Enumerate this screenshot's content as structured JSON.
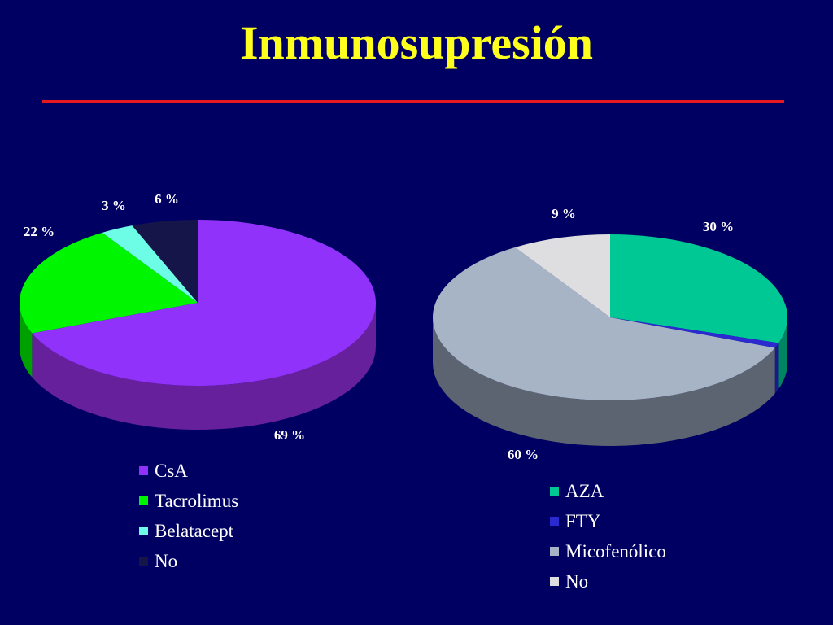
{
  "title": "Inmunosupresión",
  "chart_data": [
    {
      "type": "pie",
      "categories": [
        "CsA",
        "Tacrolimus",
        "Belatacept",
        "No"
      ],
      "values": [
        69,
        22,
        3,
        6
      ],
      "value_labels": [
        "69 %",
        "22 %",
        "3 %",
        "6 %"
      ],
      "colors": [
        "#9132fa",
        "#00f500",
        "#6dfce6",
        "#15154a"
      ],
      "side_colors": [
        "#66209c",
        "#00a000",
        "#3ac9b3",
        "#0b0b30"
      ],
      "legend_position": "bottom",
      "style": "3d"
    },
    {
      "type": "pie",
      "categories": [
        "AZA",
        "FTY",
        "Micofenólico",
        "No"
      ],
      "values": [
        30,
        1,
        60,
        9
      ],
      "value_labels": [
        "30 %",
        "",
        "60 %",
        "9 %"
      ],
      "colors": [
        "#00c895",
        "#2a2ad0",
        "#a7b4c6",
        "#dedee0"
      ],
      "side_colors": [
        "#008563",
        "#1a1a8a",
        "#5b6470",
        "#9a9aa0"
      ],
      "legend_position": "bottom",
      "style": "3d"
    }
  ]
}
